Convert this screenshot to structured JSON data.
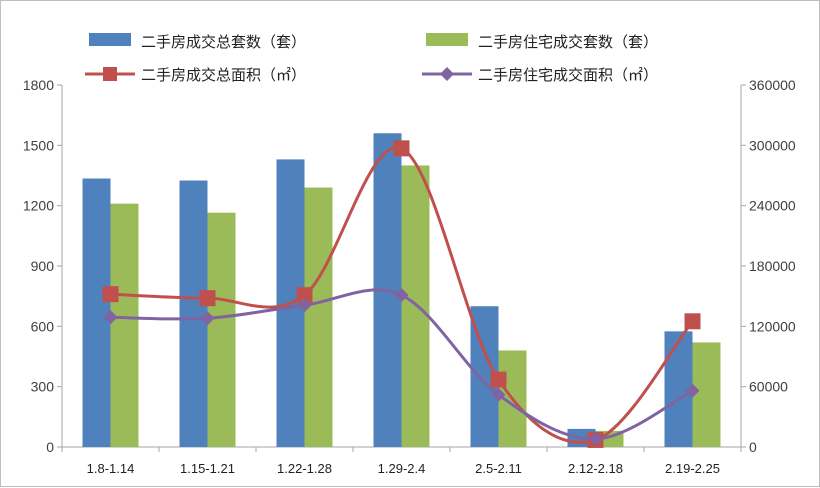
{
  "chart_data": {
    "type": "bar",
    "categories": [
      "1.8-1.14",
      "1.15-1.21",
      "1.22-1.28",
      "1.29-2.4",
      "2.5-2.11",
      "2.12-2.18",
      "2.19-2.25"
    ],
    "series": [
      {
        "name": "二手房成交总套数（套）",
        "type": "bar",
        "axis": "left",
        "color": "#4f81bd",
        "values": [
          1335,
          1325,
          1430,
          1560,
          700,
          90,
          575
        ]
      },
      {
        "name": "二手房住宅成交套数（套）",
        "type": "bar",
        "axis": "left",
        "color": "#9bbb59",
        "values": [
          1210,
          1165,
          1290,
          1400,
          480,
          80,
          520
        ]
      },
      {
        "name": "二手房成交总面积（㎡）",
        "type": "line",
        "marker": "square",
        "axis": "right",
        "color": "#c0504d",
        "values": [
          152000,
          148000,
          151000,
          297000,
          67000,
          7000,
          125000
        ]
      },
      {
        "name": "二手房住宅成交面积（㎡）",
        "type": "line",
        "marker": "diamond",
        "axis": "right",
        "color": "#8064a2",
        "values": [
          129000,
          128000,
          141000,
          151000,
          52000,
          8000,
          56000
        ]
      }
    ],
    "left_axis": {
      "ylim": [
        0,
        1800
      ],
      "ticks": [
        "1800",
        "1500",
        "1200",
        "900",
        "600",
        "300",
        "0"
      ]
    },
    "right_axis": {
      "ylim": [
        0,
        360000
      ],
      "ticks": [
        "360000",
        "300000",
        "240000",
        "180000",
        "120000",
        "60000",
        "0"
      ]
    },
    "grid": false,
    "legend_position": "top"
  }
}
